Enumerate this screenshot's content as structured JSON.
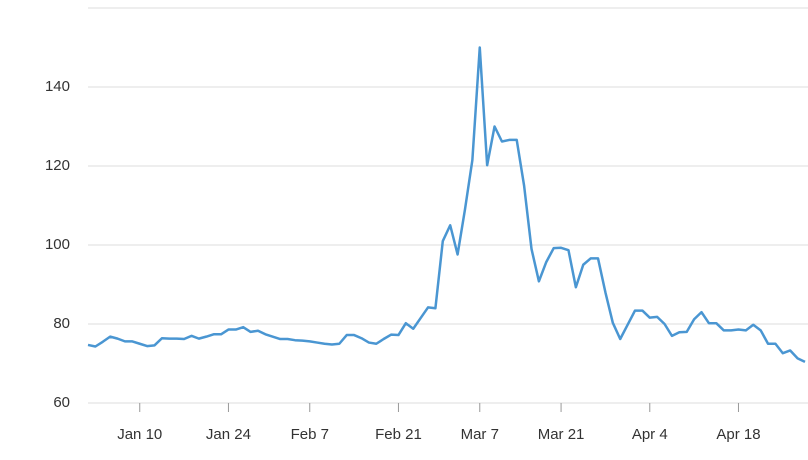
{
  "chart_data": {
    "type": "line",
    "categories": [
      null,
      null,
      null,
      null,
      null,
      null,
      null,
      "Jan 10",
      null,
      null,
      null,
      null,
      null,
      null,
      null,
      null,
      null,
      null,
      null,
      "Jan 24",
      null,
      null,
      null,
      null,
      null,
      null,
      null,
      null,
      null,
      null,
      "Feb 7",
      null,
      null,
      null,
      null,
      null,
      null,
      null,
      null,
      null,
      null,
      null,
      "Feb 21",
      null,
      null,
      null,
      null,
      null,
      null,
      null,
      null,
      null,
      null,
      "Mar 7",
      null,
      null,
      null,
      null,
      null,
      null,
      null,
      null,
      null,
      null,
      "Mar 21",
      null,
      null,
      null,
      null,
      null,
      null,
      null,
      null,
      null,
      null,
      null,
      "Apr 4",
      null,
      null,
      null,
      null,
      null,
      null,
      null,
      null,
      null,
      null,
      null,
      "Apr 18",
      null,
      null,
      null,
      null,
      null,
      null,
      null,
      null,
      null
    ],
    "series": [
      {
        "color": "#4a96d2",
        "values": [
          74.7,
          74.3,
          75.5,
          76.8,
          76.3,
          75.6,
          75.6,
          75,
          74.4,
          74.6,
          76.4,
          76.3,
          76.3,
          76.2,
          77,
          76.3,
          76.8,
          77.4,
          77.4,
          78.6,
          78.6,
          79.2,
          78,
          78.3,
          77.4,
          76.8,
          76.2,
          76.2,
          75.9,
          75.8,
          75.6,
          75.3,
          75,
          74.8,
          75,
          77.2,
          77.2,
          76.4,
          75.3,
          75,
          76.2,
          77.3,
          77.2,
          80.2,
          78.8,
          81.5,
          84.2,
          84,
          101,
          105,
          97.6,
          109,
          121.5,
          150,
          120.2,
          130,
          126.2,
          126.6,
          126.6,
          115,
          99,
          90.8,
          95.7,
          99.2,
          99.3,
          98.7,
          89.3,
          95,
          96.6,
          96.6,
          88,
          80.3,
          76.2,
          79.8,
          83.4,
          83.4,
          81.6,
          81.8,
          80,
          77,
          77.9,
          78,
          81.2,
          83,
          80.2,
          80.2,
          78.4,
          78.4,
          78.6,
          78.4,
          79.8,
          78.4,
          75,
          75,
          72.6,
          73.3,
          71.3,
          70.4
        ]
      }
    ],
    "ylim": [
      60,
      160
    ],
    "yticks": [
      60,
      80,
      100,
      120,
      140
    ],
    "grid": true
  }
}
